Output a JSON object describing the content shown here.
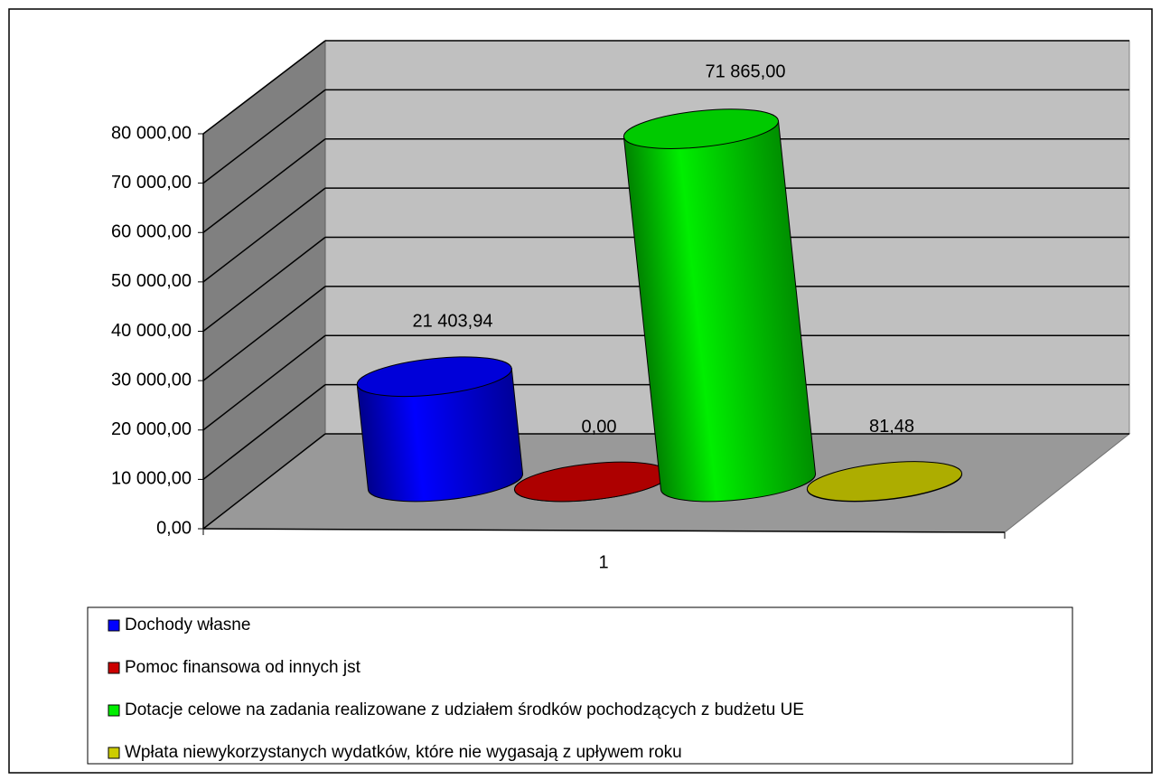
{
  "chart_data": {
    "type": "bar3d",
    "categories": [
      "1"
    ],
    "series": [
      {
        "name": "Dochody własne",
        "color": "#0000ff",
        "values": [
          21403.94
        ],
        "value_labels": [
          "21 403,94"
        ]
      },
      {
        "name": "Pomoc finansowa od innych jst",
        "color": "#cc0000",
        "values": [
          0
        ],
        "value_labels": [
          "0,00"
        ]
      },
      {
        "name": "Dotacje celowe na zadania realizowane z udziałem środków pochodzących z budżetu UE",
        "color": "#00ee00",
        "values": [
          71865
        ],
        "value_labels": [
          "71 865,00"
        ]
      },
      {
        "name": "Wpłata niewykorzystanych wydatków, które nie wygasają z upływem roku",
        "color": "#cccc00",
        "values": [
          81.48
        ],
        "value_labels": [
          "81,48"
        ]
      }
    ],
    "ylim": [
      0,
      80000
    ],
    "yticks": [
      {
        "value": 0,
        "label": "0,00"
      },
      {
        "value": 10000,
        "label": "10 000,00"
      },
      {
        "value": 20000,
        "label": "20 000,00"
      },
      {
        "value": 30000,
        "label": "30 000,00"
      },
      {
        "value": 40000,
        "label": "40 000,00"
      },
      {
        "value": 50000,
        "label": "50 000,00"
      },
      {
        "value": 60000,
        "label": "60 000,00"
      },
      {
        "value": 70000,
        "label": "70 000,00"
      },
      {
        "value": 80000,
        "label": "80 000,00"
      }
    ],
    "grid": true,
    "legend": "bottom"
  }
}
